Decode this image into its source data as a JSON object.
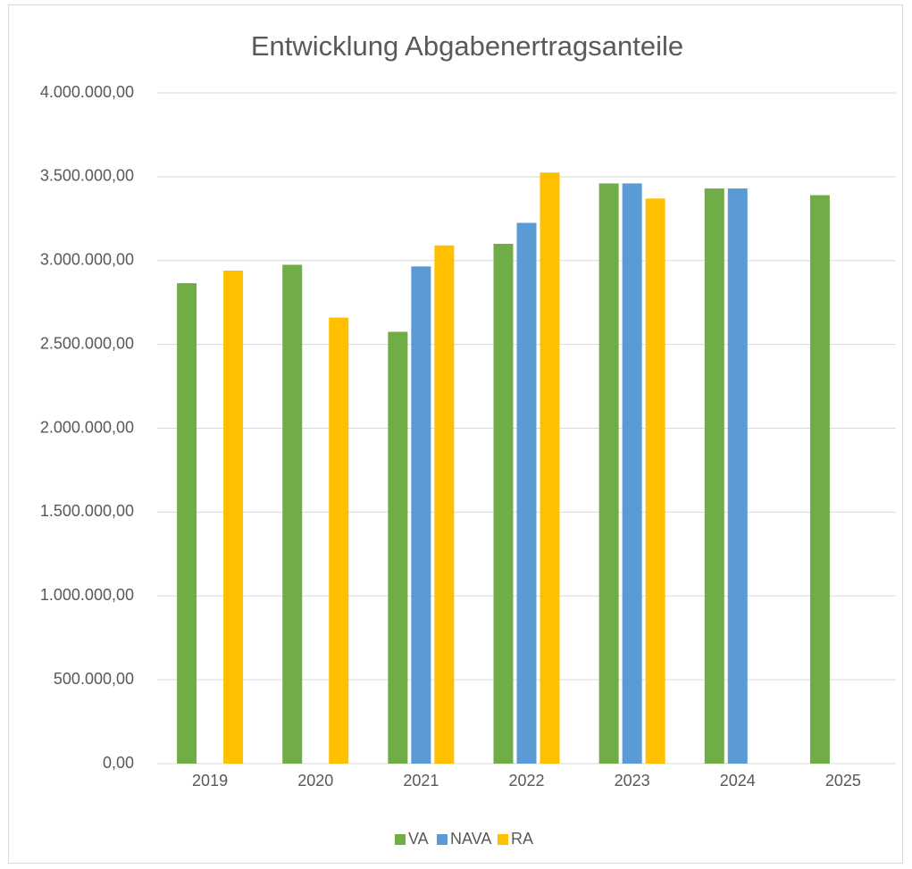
{
  "chart_data": {
    "type": "bar",
    "title": "Entwicklung Abgabenertragsanteile",
    "categories": [
      "2019",
      "2020",
      "2021",
      "2022",
      "2023",
      "2024",
      "2025"
    ],
    "series": [
      {
        "name": "VA",
        "color": "#70ad47",
        "values": [
          2865000,
          2975000,
          2575000,
          3100000,
          3460000,
          3430000,
          3390000
        ]
      },
      {
        "name": "NAVA",
        "color": "#5b9bd5",
        "values": [
          null,
          null,
          2965000,
          3225000,
          3460000,
          3430000,
          null
        ]
      },
      {
        "name": "RA",
        "color": "#ffc000",
        "values": [
          2940000,
          2660000,
          3090000,
          3525000,
          3370000,
          null,
          null
        ]
      }
    ],
    "ylim": [
      0,
      4000000
    ],
    "yticks": [
      {
        "value": 0,
        "label": "0,00"
      },
      {
        "value": 500000,
        "label": "500.000,00"
      },
      {
        "value": 1000000,
        "label": "1.000.000,00"
      },
      {
        "value": 1500000,
        "label": "1.500.000,00"
      },
      {
        "value": 2000000,
        "label": "2.000.000,00"
      },
      {
        "value": 2500000,
        "label": "2.500.000,00"
      },
      {
        "value": 3000000,
        "label": "3.000.000,00"
      },
      {
        "value": 3500000,
        "label": "3.500.000,00"
      },
      {
        "value": 4000000,
        "label": "4.000.000,00"
      }
    ],
    "grid": true,
    "legend": "bottom"
  }
}
